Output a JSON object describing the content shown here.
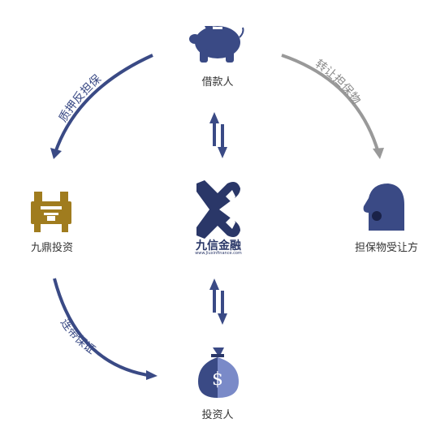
{
  "nodes": {
    "borrower": "借款人",
    "guarantor": "九鼎投资",
    "transferee": "担保物受让方",
    "investor": "投资人"
  },
  "edges": {
    "top_left": "质押反担保",
    "top_right": "转让担保物",
    "bottom_left": "连带保证"
  },
  "brand": {
    "name": "九信金融",
    "url": "www.Jiuxinfinance.com"
  },
  "colors": {
    "navy": "#3a4a85",
    "gray": "#999999",
    "gold": "#a07c1e"
  },
  "icons": [
    "piggy-bank-icon",
    "ding-cauldron-icon",
    "head-profile-icon",
    "money-bag-icon",
    "exchange-arrows-icon"
  ]
}
